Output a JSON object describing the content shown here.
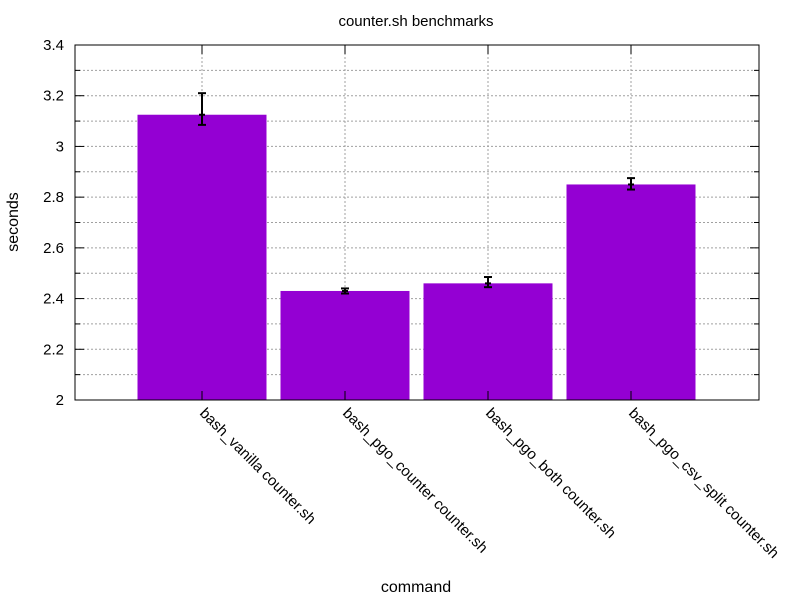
{
  "chart_data": {
    "type": "bar",
    "title": "counter.sh benchmarks",
    "xlabel": "command",
    "ylabel": "seconds",
    "ylim": [
      2,
      3.4
    ],
    "y_ticks": [
      2,
      2.2,
      2.4,
      2.6,
      2.8,
      3,
      3.2,
      3.4
    ],
    "y_tick_labels": [
      "2",
      "2.2",
      "2.4",
      "2.6",
      "2.8",
      "3",
      "3.2",
      "3.4"
    ],
    "grid": true,
    "categories": [
      "bash_vanilla counter.sh",
      "bash_pgo_counter counter.sh",
      "bash_pgo_both counter.sh",
      "bash_pgo_csv_split counter.sh"
    ],
    "values": [
      3.125,
      2.43,
      2.46,
      2.85
    ],
    "error_low": [
      3.085,
      2.42,
      2.445,
      2.83
    ],
    "error_high": [
      3.21,
      2.44,
      2.485,
      2.875
    ],
    "bar_color": "#9400d3"
  }
}
